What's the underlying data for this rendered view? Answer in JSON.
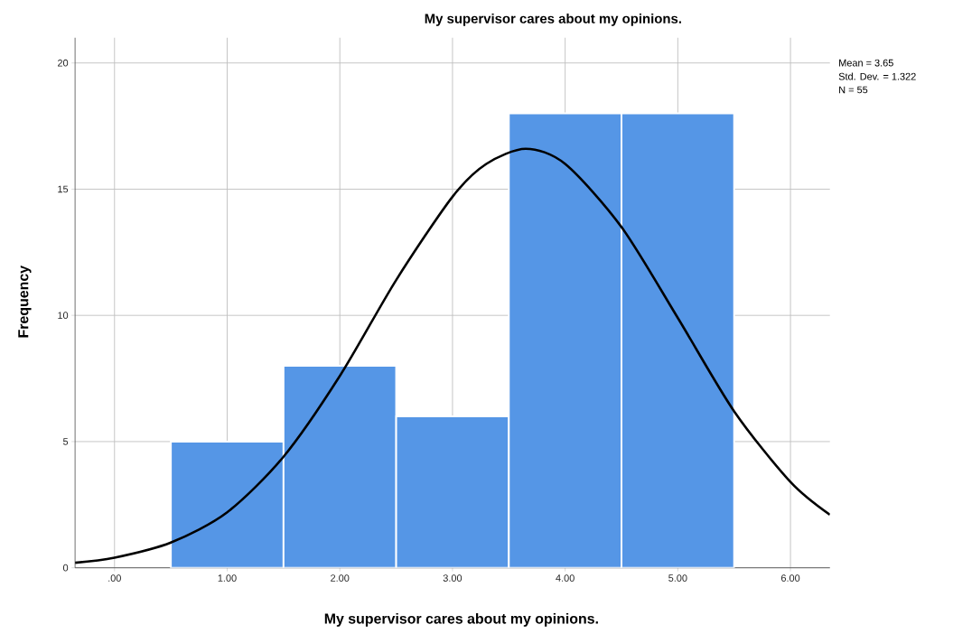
{
  "chart_data": {
    "type": "histogram",
    "title": "My supervisor cares about my opinions.",
    "xlabel": "My supervisor cares about my opinions.",
    "ylabel": "Frequency",
    "bins": [
      0.5,
      1.5,
      2.5,
      3.5,
      4.5,
      5.5
    ],
    "values": [
      5,
      8,
      6,
      18,
      18
    ],
    "color": "#5596e6",
    "series": [
      {
        "type": "line",
        "color": "#000000",
        "x": [
          -0.35,
          0,
          0.5,
          1,
          1.5,
          2,
          2.5,
          3,
          3.3,
          3.65,
          4,
          4.5,
          5,
          5.5,
          6,
          6.35
        ],
        "values": [
          0.2,
          0.4,
          1.0,
          2.2,
          4.4,
          7.6,
          11.4,
          14.7,
          16.0,
          16.6,
          16.0,
          13.5,
          9.9,
          6.2,
          3.4,
          2.1
        ]
      }
    ],
    "xlim": [
      -0.35,
      6.35
    ],
    "ylim": [
      0,
      21
    ],
    "xticks": [
      {
        "value": 0,
        "label": ".00"
      },
      {
        "value": 1,
        "label": "1.00"
      },
      {
        "value": 2,
        "label": "2.00"
      },
      {
        "value": 3,
        "label": "3.00"
      },
      {
        "value": 4,
        "label": "4.00"
      },
      {
        "value": 5,
        "label": "5.00"
      },
      {
        "value": 6,
        "label": "6.00"
      }
    ],
    "yticks": [
      0,
      5,
      10,
      15,
      20
    ],
    "grid": true,
    "annotations": [
      "Mean = 3.65",
      "Std. Dev. = 1.322",
      "N = 55"
    ]
  }
}
